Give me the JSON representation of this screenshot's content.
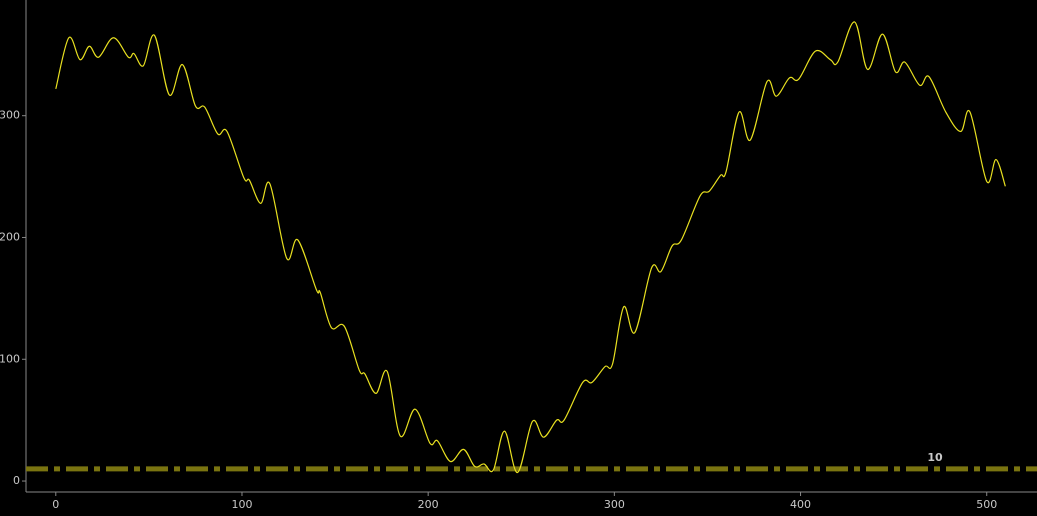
{
  "chart_data": {
    "type": "line",
    "x": [
      0,
      7,
      13,
      18,
      23,
      31,
      39,
      42,
      47,
      53,
      61,
      68,
      75,
      80,
      87,
      92,
      101,
      104,
      110,
      115,
      124,
      130,
      140,
      142,
      148,
      155,
      163,
      166,
      172,
      178,
      185,
      193,
      201,
      205,
      212,
      219,
      225,
      230,
      235,
      241,
      248,
      256,
      262,
      269,
      273,
      283,
      288,
      295,
      299,
      305,
      311,
      320,
      325,
      331,
      336,
      346,
      351,
      357,
      360,
      367,
      373,
      382,
      387,
      394,
      399,
      408,
      416,
      420,
      429,
      436,
      444,
      451,
      456,
      464,
      469,
      478,
      486,
      491,
      500,
      505,
      510
    ],
    "series": [
      {
        "color": "#e8e020",
        "values": [
          322,
          364,
          346,
          357,
          348,
          364,
          348,
          351,
          341,
          366,
          317,
          342,
          308,
          307,
          285,
          287,
          249,
          247,
          228,
          244,
          183,
          198,
          157,
          155,
          126,
          127,
          91,
          88,
          72,
          90,
          37,
          59,
          31,
          33,
          16,
          26,
          12,
          14,
          9,
          41,
          7,
          49,
          36,
          50,
          50,
          81,
          81,
          94,
          96,
          143,
          122,
          175,
          172,
          193,
          198,
          234,
          238,
          251,
          254,
          303,
          280,
          328,
          316,
          331,
          330,
          353,
          346,
          344,
          377,
          338,
          367,
          336,
          344,
          325,
          332,
          303,
          287,
          303,
          246,
          264,
          242
        ]
      }
    ],
    "reference_line": {
      "value": 10,
      "color": "#7a7410"
    },
    "xlim": [
      -16,
      527
    ],
    "ylim": [
      -9,
      395
    ],
    "xticks": [
      0,
      100,
      200,
      300,
      400,
      500
    ],
    "yticks": [
      0,
      100,
      200,
      300
    ]
  }
}
